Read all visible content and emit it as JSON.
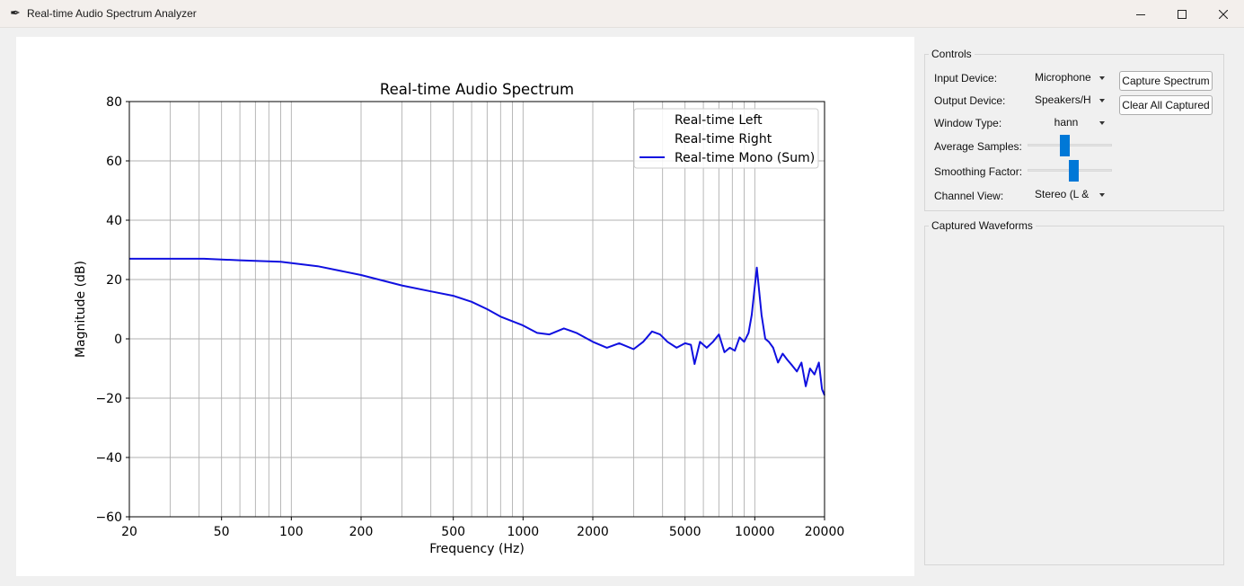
{
  "window": {
    "title": "Real-time Audio Spectrum Analyzer",
    "app_icon": "feather-icon",
    "minimize_icon": "minimize-icon",
    "maximize_icon": "maximize-icon",
    "close_icon": "close-icon"
  },
  "controls": {
    "frame_label": "Controls",
    "input_device": {
      "label": "Input Device:",
      "value": "Microphone"
    },
    "output_device": {
      "label": "Output Device:",
      "value": "Speakers/H"
    },
    "window_type": {
      "label": "Window Type:",
      "value": "hann"
    },
    "average_samples": {
      "label": "Average Samples:",
      "fraction": 0.43
    },
    "smoothing_factor": {
      "label": "Smoothing Factor:",
      "fraction": 0.56
    },
    "channel_view": {
      "label": "Channel View:",
      "value": "Stereo (L &"
    },
    "capture_button": "Capture Spectrum",
    "clear_button": "Clear All Captured"
  },
  "captured": {
    "frame_label": "Captured Waveforms"
  },
  "colors": {
    "mono": "#1010e0",
    "grid": "#b0b0b0",
    "slider": "#0078d7"
  },
  "chart_data": {
    "type": "line",
    "title": "Real-time Audio Spectrum",
    "xlabel": "Frequency (Hz)",
    "ylabel": "Magnitude (dB)",
    "xscale": "log",
    "xlim": [
      20,
      20000
    ],
    "ylim": [
      -60,
      80
    ],
    "xticks": [
      20,
      50,
      100,
      200,
      500,
      1000,
      2000,
      5000,
      10000,
      20000
    ],
    "yticks": [
      -60,
      -40,
      -20,
      0,
      20,
      40,
      60,
      80
    ],
    "grid": true,
    "legend_position": "top-right",
    "legend": [
      "Real-time Left",
      "Real-time Right",
      "Real-time Mono (Sum)"
    ],
    "series": [
      {
        "name": "Real-time Left",
        "x": [],
        "y": []
      },
      {
        "name": "Real-time Right",
        "x": [],
        "y": []
      },
      {
        "name": "Real-time Mono (Sum)",
        "x": [
          20,
          30,
          42,
          60,
          90,
          130,
          200,
          300,
          400,
          500,
          600,
          700,
          800,
          1000,
          1150,
          1300,
          1500,
          1700,
          2000,
          2300,
          2600,
          3000,
          3300,
          3600,
          3900,
          4200,
          4600,
          5000,
          5300,
          5500,
          5800,
          6200,
          6600,
          7000,
          7400,
          7800,
          8200,
          8600,
          9000,
          9400,
          9700,
          10200,
          10700,
          11100,
          11500,
          12000,
          12600,
          13200,
          13800,
          14500,
          15200,
          15900,
          16600,
          17300,
          18100,
          18900,
          19500,
          20000
        ],
        "y": [
          27,
          27,
          27,
          26.5,
          26,
          24.5,
          21.5,
          18,
          16,
          14.5,
          12.5,
          10,
          7.5,
          4.5,
          2,
          1.5,
          3.5,
          2,
          -1,
          -3,
          -1.5,
          -3.5,
          -1,
          2.5,
          1.5,
          -1,
          -3,
          -1.5,
          -2,
          -8.5,
          -1,
          -3,
          -1,
          1.5,
          -4.5,
          -3,
          -4,
          0.5,
          -1,
          2,
          8,
          24,
          8,
          0,
          -1,
          -3,
          -8,
          -5,
          -7,
          -9,
          -11,
          -8,
          -16,
          -10,
          -12,
          -8,
          -17,
          -19
        ]
      }
    ]
  }
}
